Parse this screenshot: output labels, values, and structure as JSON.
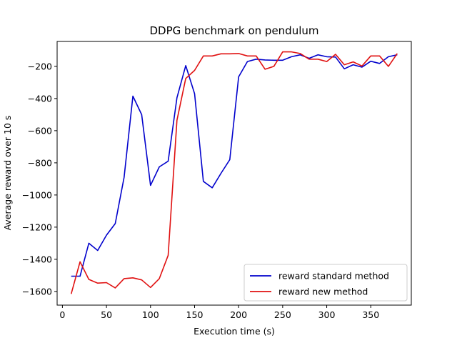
{
  "chart_data": {
    "type": "line",
    "title": "DDPG benchmark on pendulum",
    "xlabel": "Execution time (s)",
    "ylabel": "Average reward over 10 s",
    "xlim": [
      -6,
      396
    ],
    "ylim": [
      -1685,
      -45
    ],
    "xticks": [
      0,
      50,
      100,
      150,
      200,
      250,
      300,
      350
    ],
    "yticks": [
      -1600,
      -1400,
      -1200,
      -1000,
      -800,
      -600,
      -400,
      -200
    ],
    "grid": false,
    "legend_position": "lower-right",
    "series": [
      {
        "name": "reward standard method",
        "color": "#0000cc",
        "x": [
          10,
          20,
          30,
          40,
          50,
          60,
          70,
          80,
          90,
          100,
          110,
          120,
          130,
          140,
          150,
          160,
          170,
          180,
          190,
          200,
          210,
          220,
          230,
          240,
          250,
          260,
          270,
          280,
          290,
          300,
          310,
          320,
          330,
          340,
          350,
          360,
          370,
          380
        ],
        "y": [
          -1505,
          -1505,
          -1300,
          -1345,
          -1250,
          -1178,
          -890,
          -385,
          -500,
          -940,
          -825,
          -790,
          -395,
          -195,
          -370,
          -915,
          -955,
          -865,
          -780,
          -265,
          -170,
          -155,
          -160,
          -162,
          -162,
          -140,
          -128,
          -150,
          -128,
          -140,
          -142,
          -215,
          -190,
          -205,
          -168,
          -182,
          -140,
          -128
        ]
      },
      {
        "name": "reward new method",
        "color": "#e01010",
        "x": [
          10,
          20,
          30,
          40,
          50,
          60,
          70,
          80,
          90,
          100,
          110,
          120,
          130,
          140,
          150,
          160,
          170,
          180,
          190,
          200,
          210,
          220,
          230,
          240,
          250,
          260,
          270,
          280,
          290,
          300,
          310,
          320,
          330,
          340,
          350,
          360,
          370,
          380
        ],
        "y": [
          -1615,
          -1415,
          -1525,
          -1548,
          -1545,
          -1578,
          -1520,
          -1515,
          -1528,
          -1575,
          -1520,
          -1375,
          -535,
          -275,
          -225,
          -135,
          -135,
          -122,
          -122,
          -120,
          -135,
          -135,
          -218,
          -200,
          -110,
          -110,
          -120,
          -155,
          -155,
          -170,
          -125,
          -190,
          -172,
          -198,
          -135,
          -135,
          -200,
          -120
        ]
      }
    ]
  }
}
